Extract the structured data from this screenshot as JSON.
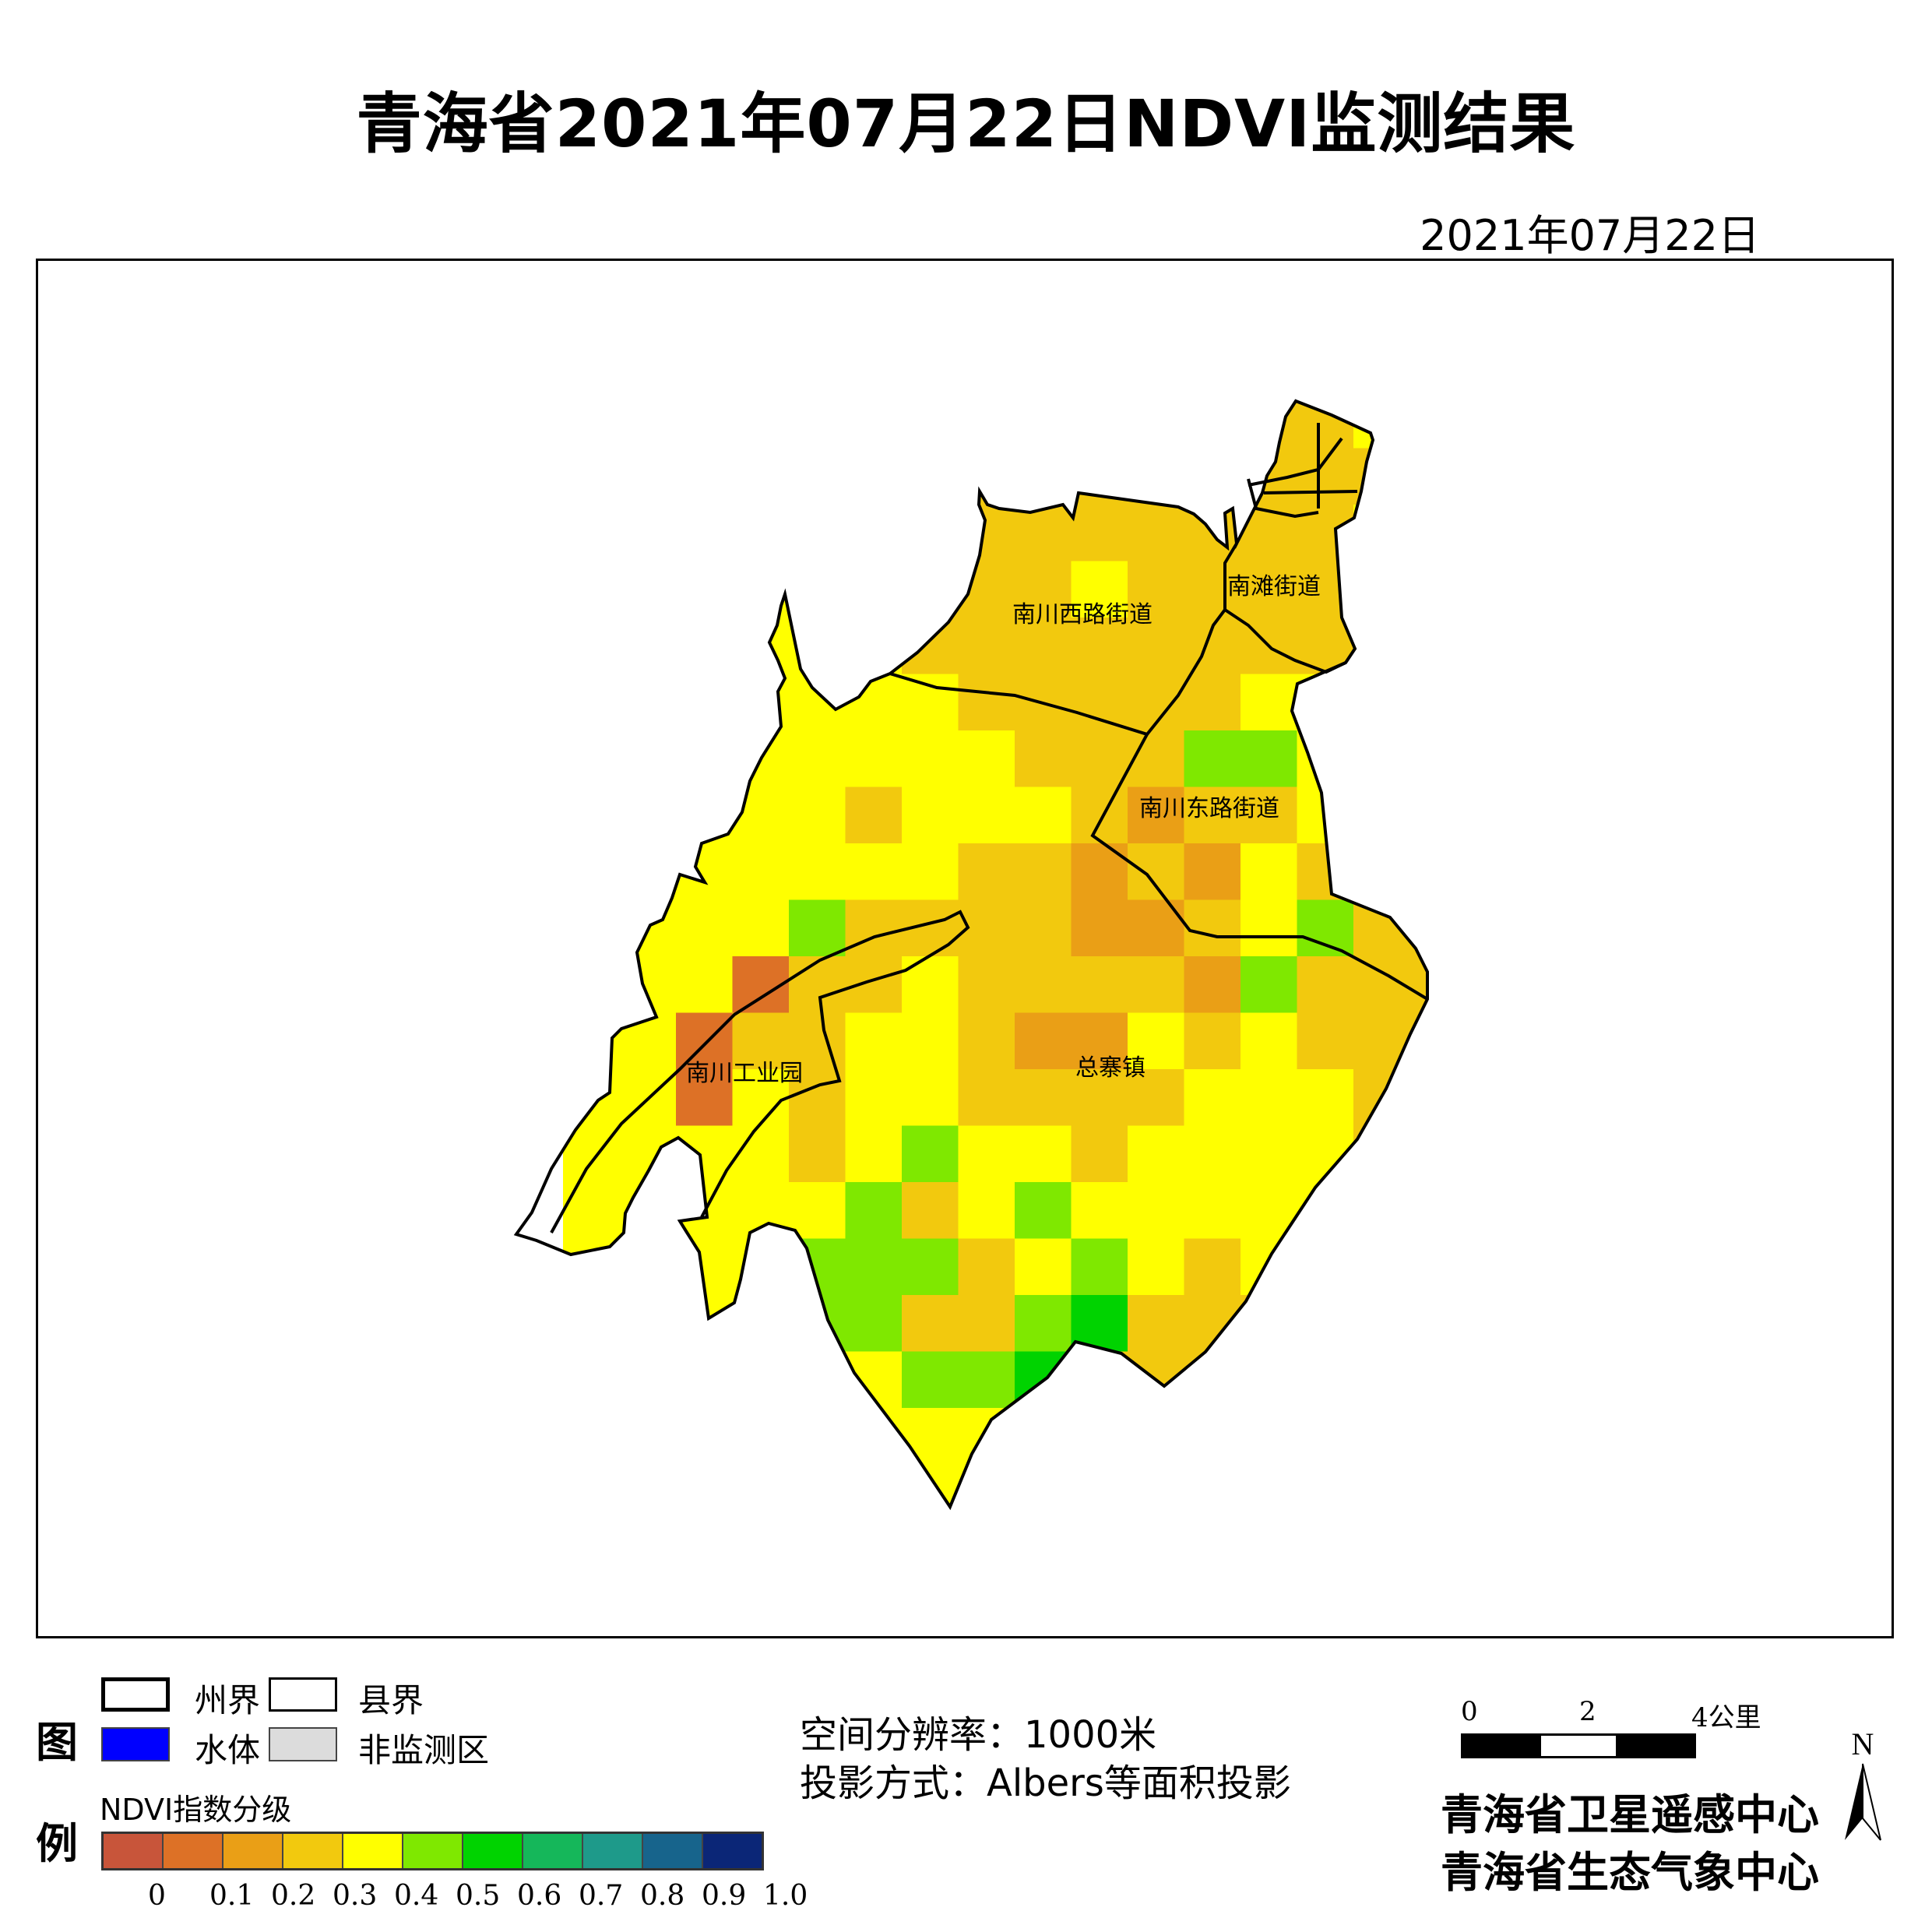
{
  "title": "青海省2021年07月22日NDVI监测结果",
  "date": "2021年07月22日",
  "map": {
    "regions": [
      "南川西路街道",
      "南滩街道",
      "南川东路街道",
      "南川工业园",
      "总寨镇"
    ],
    "colors": {
      "border": "#000000",
      "background": "#ffffff"
    }
  },
  "legend": {
    "title_chars": [
      "图",
      "例"
    ],
    "items": [
      {
        "label": "州界",
        "swatch": "#ffffff"
      },
      {
        "label": "县界",
        "swatch": "#ffffff"
      },
      {
        "label": "水体",
        "swatch": "#0000ff"
      },
      {
        "label": "非监测区",
        "swatch": "#dcdcdc"
      }
    ],
    "ndvi_title": "NDVI指数分级",
    "ramp_colors": [
      "#c8553a",
      "#dd7126",
      "#ea9f16",
      "#f2c90e",
      "#ffff00",
      "#7fe800",
      "#00d300",
      "#15b75a",
      "#1e9a8a",
      "#17648c",
      "#0b2677"
    ],
    "ticks": [
      "0",
      "0.1",
      "0.2",
      "0.3",
      "0.4",
      "0.5",
      "0.6",
      "0.7",
      "0.8",
      "0.9",
      "1.0"
    ]
  },
  "info": {
    "resolution": "空间分辨率：1000米",
    "projection": "投影方式：Albers等面积投影"
  },
  "scale": {
    "labels": [
      "0",
      "2",
      "4公里"
    ]
  },
  "north_label": "N",
  "org": [
    "青海省卫星遥感中心",
    "青海省生态气象中心"
  ]
}
